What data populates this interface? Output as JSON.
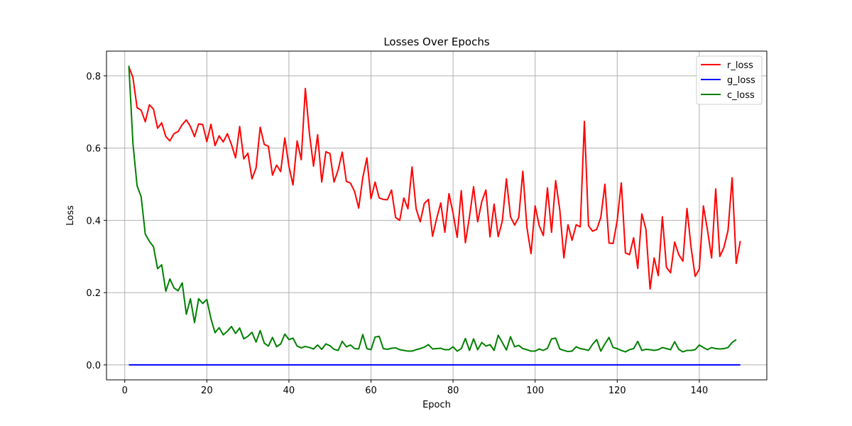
{
  "chart_data": {
    "type": "line",
    "title": "Losses Over Epochs",
    "xlabel": "Epoch",
    "ylabel": "Loss",
    "xlim": [
      -4.45,
      156.45
    ],
    "ylim": [
      -0.0415,
      0.8685
    ],
    "xticks": [
      0,
      20,
      40,
      60,
      80,
      100,
      120,
      140
    ],
    "yticks": [
      0.0,
      0.2,
      0.4,
      0.6,
      0.8
    ],
    "ytick_labels": [
      "0.0",
      "0.2",
      "0.4",
      "0.6",
      "0.8"
    ],
    "grid": true,
    "legend_position": "top-right",
    "colors": {
      "r_loss": "#ff0000",
      "g_loss": "#0000ff",
      "c_loss": "#008000"
    },
    "series": [
      {
        "name": "r_loss",
        "color": "#ff0000",
        "values": [
          0.825,
          0.795,
          0.712,
          0.705,
          0.673,
          0.72,
          0.708,
          0.655,
          0.67,
          0.632,
          0.62,
          0.64,
          0.646,
          0.665,
          0.678,
          0.66,
          0.632,
          0.667,
          0.665,
          0.618,
          0.666,
          0.607,
          0.634,
          0.617,
          0.64,
          0.61,
          0.573,
          0.66,
          0.57,
          0.586,
          0.515,
          0.545,
          0.658,
          0.61,
          0.605,
          0.525,
          0.553,
          0.535,
          0.628,
          0.55,
          0.498,
          0.62,
          0.568,
          0.765,
          0.64,
          0.55,
          0.637,
          0.506,
          0.59,
          0.585,
          0.506,
          0.54,
          0.589,
          0.508,
          0.503,
          0.48,
          0.434,
          0.518,
          0.573,
          0.46,
          0.506,
          0.462,
          0.458,
          0.457,
          0.484,
          0.408,
          0.4,
          0.462,
          0.432,
          0.548,
          0.432,
          0.396,
          0.447,
          0.458,
          0.356,
          0.405,
          0.448,
          0.367,
          0.474,
          0.42,
          0.353,
          0.482,
          0.338,
          0.41,
          0.493,
          0.396,
          0.452,
          0.484,
          0.354,
          0.445,
          0.355,
          0.398,
          0.515,
          0.41,
          0.387,
          0.408,
          0.536,
          0.38,
          0.308,
          0.44,
          0.385,
          0.358,
          0.49,
          0.367,
          0.51,
          0.43,
          0.296,
          0.388,
          0.345,
          0.388,
          0.382,
          0.674,
          0.385,
          0.37,
          0.375,
          0.408,
          0.5,
          0.337,
          0.336,
          0.4,
          0.504,
          0.31,
          0.305,
          0.352,
          0.267,
          0.418,
          0.375,
          0.21,
          0.296,
          0.247,
          0.41,
          0.27,
          0.255,
          0.34,
          0.305,
          0.287,
          0.433,
          0.325,
          0.245,
          0.265,
          0.44,
          0.373,
          0.296,
          0.487,
          0.3,
          0.325,
          0.372,
          0.518,
          0.281,
          0.343
        ]
      },
      {
        "name": "g_loss",
        "color": "#0000ff",
        "values": [
          0.0,
          0.0,
          0.0,
          0.0,
          0.0,
          0.0,
          0.0,
          0.0,
          0.0,
          0.0,
          0.0,
          0.0,
          0.0,
          0.0,
          0.0,
          0.0,
          0.0,
          0.0,
          0.0,
          0.0,
          0.0,
          0.0,
          0.0,
          0.0,
          0.0,
          0.0,
          0.0,
          0.0,
          0.0,
          0.0,
          0.0,
          0.0,
          0.0,
          0.0,
          0.0,
          0.0,
          0.0,
          0.0,
          0.0,
          0.0,
          0.0,
          0.0,
          0.0,
          0.0,
          0.0,
          0.0,
          0.0,
          0.0,
          0.0,
          0.0,
          0.0,
          0.0,
          0.0,
          0.0,
          0.0,
          0.0,
          0.0,
          0.0,
          0.0,
          0.0,
          0.0,
          0.0,
          0.0,
          0.0,
          0.0,
          0.0,
          0.0,
          0.0,
          0.0,
          0.0,
          0.0,
          0.0,
          0.0,
          0.0,
          0.0,
          0.0,
          0.0,
          0.0,
          0.0,
          0.0,
          0.0,
          0.0,
          0.0,
          0.0,
          0.0,
          0.0,
          0.0,
          0.0,
          0.0,
          0.0,
          0.0,
          0.0,
          0.0,
          0.0,
          0.0,
          0.0,
          0.0,
          0.0,
          0.0,
          0.0,
          0.0,
          0.0,
          0.0,
          0.0,
          0.0,
          0.0,
          0.0,
          0.0,
          0.0,
          0.0,
          0.0,
          0.0,
          0.0,
          0.0,
          0.0,
          0.0,
          0.0,
          0.0,
          0.0,
          0.0,
          0.0,
          0.0,
          0.0,
          0.0,
          0.0,
          0.0,
          0.0,
          0.0,
          0.0,
          0.0,
          0.0,
          0.0,
          0.0,
          0.0,
          0.0,
          0.0,
          0.0,
          0.0,
          0.0,
          0.0,
          0.0,
          0.0,
          0.0,
          0.0,
          0.0,
          0.0,
          0.0,
          0.0,
          0.0,
          0.0
        ]
      },
      {
        "name": "c_loss",
        "color": "#008000",
        "values": [
          0.828,
          0.612,
          0.496,
          0.465,
          0.362,
          0.342,
          0.327,
          0.266,
          0.277,
          0.204,
          0.238,
          0.213,
          0.205,
          0.227,
          0.14,
          0.183,
          0.117,
          0.183,
          0.17,
          0.181,
          0.128,
          0.089,
          0.103,
          0.083,
          0.093,
          0.106,
          0.087,
          0.102,
          0.072,
          0.079,
          0.09,
          0.063,
          0.095,
          0.06,
          0.052,
          0.076,
          0.05,
          0.058,
          0.085,
          0.07,
          0.074,
          0.052,
          0.047,
          0.051,
          0.048,
          0.044,
          0.055,
          0.043,
          0.058,
          0.053,
          0.043,
          0.04,
          0.065,
          0.05,
          0.055,
          0.045,
          0.044,
          0.084,
          0.045,
          0.042,
          0.077,
          0.079,
          0.045,
          0.043,
          0.046,
          0.047,
          0.042,
          0.04,
          0.038,
          0.038,
          0.042,
          0.045,
          0.049,
          0.056,
          0.044,
          0.045,
          0.046,
          0.042,
          0.042,
          0.05,
          0.038,
          0.045,
          0.073,
          0.04,
          0.072,
          0.042,
          0.062,
          0.052,
          0.056,
          0.04,
          0.082,
          0.062,
          0.041,
          0.078,
          0.05,
          0.054,
          0.045,
          0.042,
          0.038,
          0.038,
          0.044,
          0.04,
          0.046,
          0.072,
          0.074,
          0.044,
          0.04,
          0.037,
          0.038,
          0.05,
          0.045,
          0.043,
          0.04,
          0.057,
          0.07,
          0.038,
          0.058,
          0.076,
          0.048,
          0.045,
          0.04,
          0.036,
          0.042,
          0.045,
          0.065,
          0.04,
          0.043,
          0.042,
          0.04,
          0.042,
          0.048,
          0.045,
          0.042,
          0.064,
          0.043,
          0.036,
          0.04,
          0.04,
          0.042,
          0.055,
          0.048,
          0.042,
          0.048,
          0.045,
          0.044,
          0.045,
          0.048,
          0.062,
          0.07
        ]
      }
    ]
  }
}
